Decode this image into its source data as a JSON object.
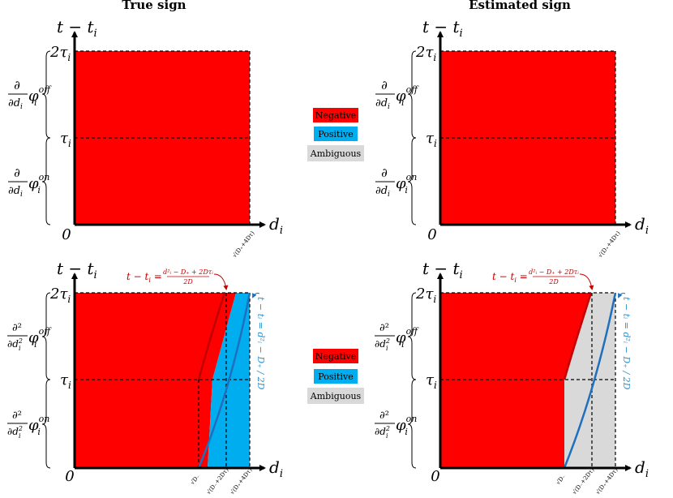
{
  "titles": {
    "left": "True sign",
    "right": "Estimated sign"
  },
  "axes": {
    "y_label": "t − t",
    "y_sub": "i",
    "x_label": "d",
    "x_sub": "i",
    "origin": "0",
    "tau_main": "τ",
    "tau_sub": "i",
    "two_tau_main": "2τ",
    "two_tau_sub": "i"
  },
  "ticks": {
    "top": "√(D₊+4Dτ)",
    "bottom_1": "√D₋",
    "bottom_2": "√(D₋+2Dτ)",
    "bottom_3": "√(D₊+4Dτ)"
  },
  "brace_labels": {
    "first_off_num": "∂",
    "first_off_den": "∂d",
    "first_off_den_sub": "i",
    "first_off_phi": "φ",
    "first_off_sub": "i",
    "first_off_sup": "off",
    "first_on_num": "∂",
    "first_on_den": "∂d",
    "first_on_den_sub": "i",
    "first_on_phi": "φ",
    "first_on_sub": "i",
    "first_on_sup": "on",
    "second_off_num": "∂²",
    "second_off_den": "∂d",
    "second_off_den_sup": "2",
    "second_off_den_sub": "i",
    "second_off_phi": "φ",
    "second_off_sub": "i",
    "second_off_sup": "off",
    "second_on_num": "∂²",
    "second_on_den": "∂d",
    "second_on_den_sup": "2",
    "second_on_den_sub": "i",
    "second_on_phi": "φ",
    "second_on_sub": "i",
    "second_on_sup": "on"
  },
  "legend": {
    "negative": "Negative",
    "positive": "Positive",
    "ambiguous": "Ambiguous"
  },
  "annotations": {
    "red_lhs": "t − t",
    "red_lhs_sub": "i",
    "red_eq": " = ",
    "red_num": "d²ᵢ − D₊ + 2Dτᵢ",
    "red_den": "2D",
    "blue_text": "t − tᵢ = d²ᵢ − D₊ / 2D"
  },
  "colors": {
    "negative": "#ff0000",
    "positive": "#00aeef",
    "ambiguous": "#d9d9d9",
    "red_curve": "#c00000",
    "blue_curve": "#1f6fbf",
    "red_text": "#c00000",
    "blue_text": "#2a8fd0"
  }
}
